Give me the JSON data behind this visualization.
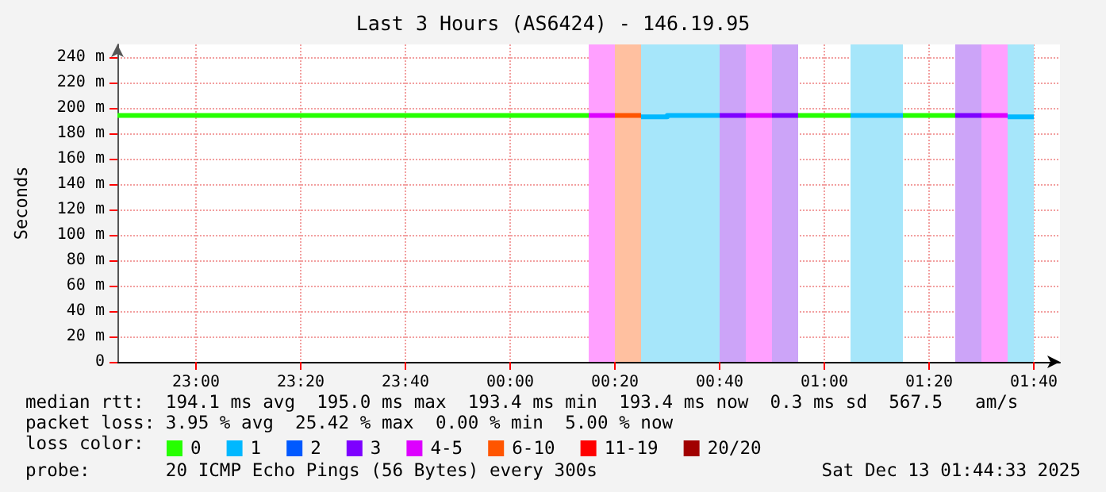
{
  "chart_data": {
    "type": "line",
    "title": "Last 3 Hours (AS6424) - 146.19.95",
    "ylabel": "Seconds",
    "legend_title": "loss color:",
    "xlim": [
      "2025-12-12T22:45",
      "2025-12-13T01:45"
    ],
    "xticks": [
      {
        "value": "2025-12-12T23:00",
        "label": "23:00"
      },
      {
        "value": "2025-12-12T23:20",
        "label": "23:20"
      },
      {
        "value": "2025-12-12T23:40",
        "label": "23:40"
      },
      {
        "value": "2025-12-13T00:00",
        "label": "00:00"
      },
      {
        "value": "2025-12-13T00:20",
        "label": "00:20"
      },
      {
        "value": "2025-12-13T00:40",
        "label": "00:40"
      },
      {
        "value": "2025-12-13T01:00",
        "label": "01:00"
      },
      {
        "value": "2025-12-13T01:20",
        "label": "01:20"
      },
      {
        "value": "2025-12-13T01:40",
        "label": "01:40"
      }
    ],
    "ylim": [
      0,
      250
    ],
    "yticks": [
      0,
      {
        "value": 20,
        "label": "20 m"
      },
      {
        "value": 40,
        "label": "40 m"
      },
      {
        "value": 60,
        "label": "60 m"
      },
      {
        "value": 80,
        "label": "80 m"
      },
      {
        "value": 100,
        "label": "100 m"
      },
      {
        "value": 120,
        "label": "120 m"
      },
      {
        "value": 140,
        "label": "140 m"
      },
      {
        "value": 160,
        "label": "160 m"
      },
      {
        "value": 180,
        "label": "180 m"
      },
      {
        "value": 200,
        "label": "200 m"
      },
      {
        "value": 220,
        "label": "220 m"
      },
      {
        "value": 240,
        "label": "240 m"
      }
    ],
    "grid": true,
    "legend": "bottom left",
    "marker": "none",
    "line_style": "solid",
    "series": [
      {
        "name": "0",
        "color": "#26ff00",
        "x": [
          "2025-12-12T22:45",
          "2025-12-13T00:15",
          "2025-12-13T00:35",
          "2025-12-13T00:55",
          "2025-12-13T01:05",
          "2025-12-13T01:10",
          "2025-12-13T01:15",
          "2025-12-13T01:25"
        ],
        "values": [
          194,
          194,
          null,
          194,
          194,
          null,
          194,
          194
        ]
      },
      {
        "name": "1",
        "color": "#00b8ff",
        "x": [
          "2025-12-13T00:25",
          "2025-12-13T00:30",
          "2025-12-13T00:30",
          "2025-12-13T00:40",
          "2025-12-13T00:50",
          "2025-12-13T01:05",
          "2025-12-13T01:15",
          "2025-12-13T01:30",
          "2025-12-13T01:35",
          "2025-12-13T01:40"
        ],
        "values": [
          193,
          193,
          194,
          194,
          null,
          194,
          194,
          null,
          193,
          193
        ]
      },
      {
        "name": "2",
        "color": "#0059ff"
      },
      {
        "name": "3",
        "color": "#7e00ff",
        "x": [
          "2025-12-13T00:40",
          "2025-12-13T00:45",
          "2025-12-13T00:47",
          "2025-12-13T00:50",
          "2025-12-13T00:55",
          "2025-12-13T01:10",
          "2025-12-13T01:25",
          "2025-12-13T01:30"
        ],
        "values": [
          194,
          194,
          null,
          194,
          194,
          null,
          194,
          194
        ]
      },
      {
        "name": "4-5",
        "color": "#dd00ff",
        "x": [
          "2025-12-13T00:15",
          "2025-12-13T00:20",
          "2025-12-13T00:30",
          "2025-12-13T00:45",
          "2025-12-13T00:50",
          "2025-12-13T01:10",
          "2025-12-13T01:30",
          "2025-12-13T01:35"
        ],
        "values": [
          194,
          194,
          null,
          194,
          194,
          null,
          194,
          194
        ]
      },
      {
        "name": "6-10",
        "color": "#ff5500",
        "x": [
          "2025-12-13T00:20",
          "2025-12-13T00:25"
        ],
        "values": [
          194,
          194
        ]
      },
      {
        "name": "11-19",
        "color": "#ff0000"
      },
      {
        "name": "20/20",
        "color": "#a10000"
      }
    ],
    "bands": [
      {
        "axis": "x",
        "from": "2025-12-13T00:15",
        "to": "2025-12-13T00:20",
        "color": "#ffa0ff"
      },
      {
        "axis": "x",
        "from": "2025-12-13T00:20",
        "to": "2025-12-13T00:25",
        "color": "#ffc0a0"
      },
      {
        "axis": "x",
        "from": "2025-12-13T00:25",
        "to": "2025-12-13T00:40",
        "color": "#a6e6fa"
      },
      {
        "axis": "x",
        "from": "2025-12-13T00:40",
        "to": "2025-12-13T00:45",
        "color": "#cca4f8"
      },
      {
        "axis": "x",
        "from": "2025-12-13T00:45",
        "to": "2025-12-13T00:50",
        "color": "#ffa0ff"
      },
      {
        "axis": "x",
        "from": "2025-12-13T00:50",
        "to": "2025-12-13T00:55",
        "color": "#cca4f8"
      },
      {
        "axis": "x",
        "from": "2025-12-13T01:05",
        "to": "2025-12-13T01:15",
        "color": "#a6e6fa"
      },
      {
        "axis": "x",
        "from": "2025-12-13T01:25",
        "to": "2025-12-13T01:30",
        "color": "#cca4f8"
      },
      {
        "axis": "x",
        "from": "2025-12-13T01:30",
        "to": "2025-12-13T01:35",
        "color": "#ffa0ff"
      },
      {
        "axis": "x",
        "from": "2025-12-13T01:35",
        "to": "2025-12-13T01:40",
        "color": "#a6e6fa"
      }
    ],
    "annotations": [
      "median rtt:  194.1 ms avg  195.0 ms max  193.4 ms min  193.4 ms now  0.3 ms sd  567.5   am/s",
      "packet loss: 3.95 % avg  25.42 % max  0.00 % min  5.00 % now",
      "probe:       20 ICMP Echo Pings (56 Bytes) every 300s",
      "Sat Dec 13 01:44:33 2025"
    ]
  }
}
